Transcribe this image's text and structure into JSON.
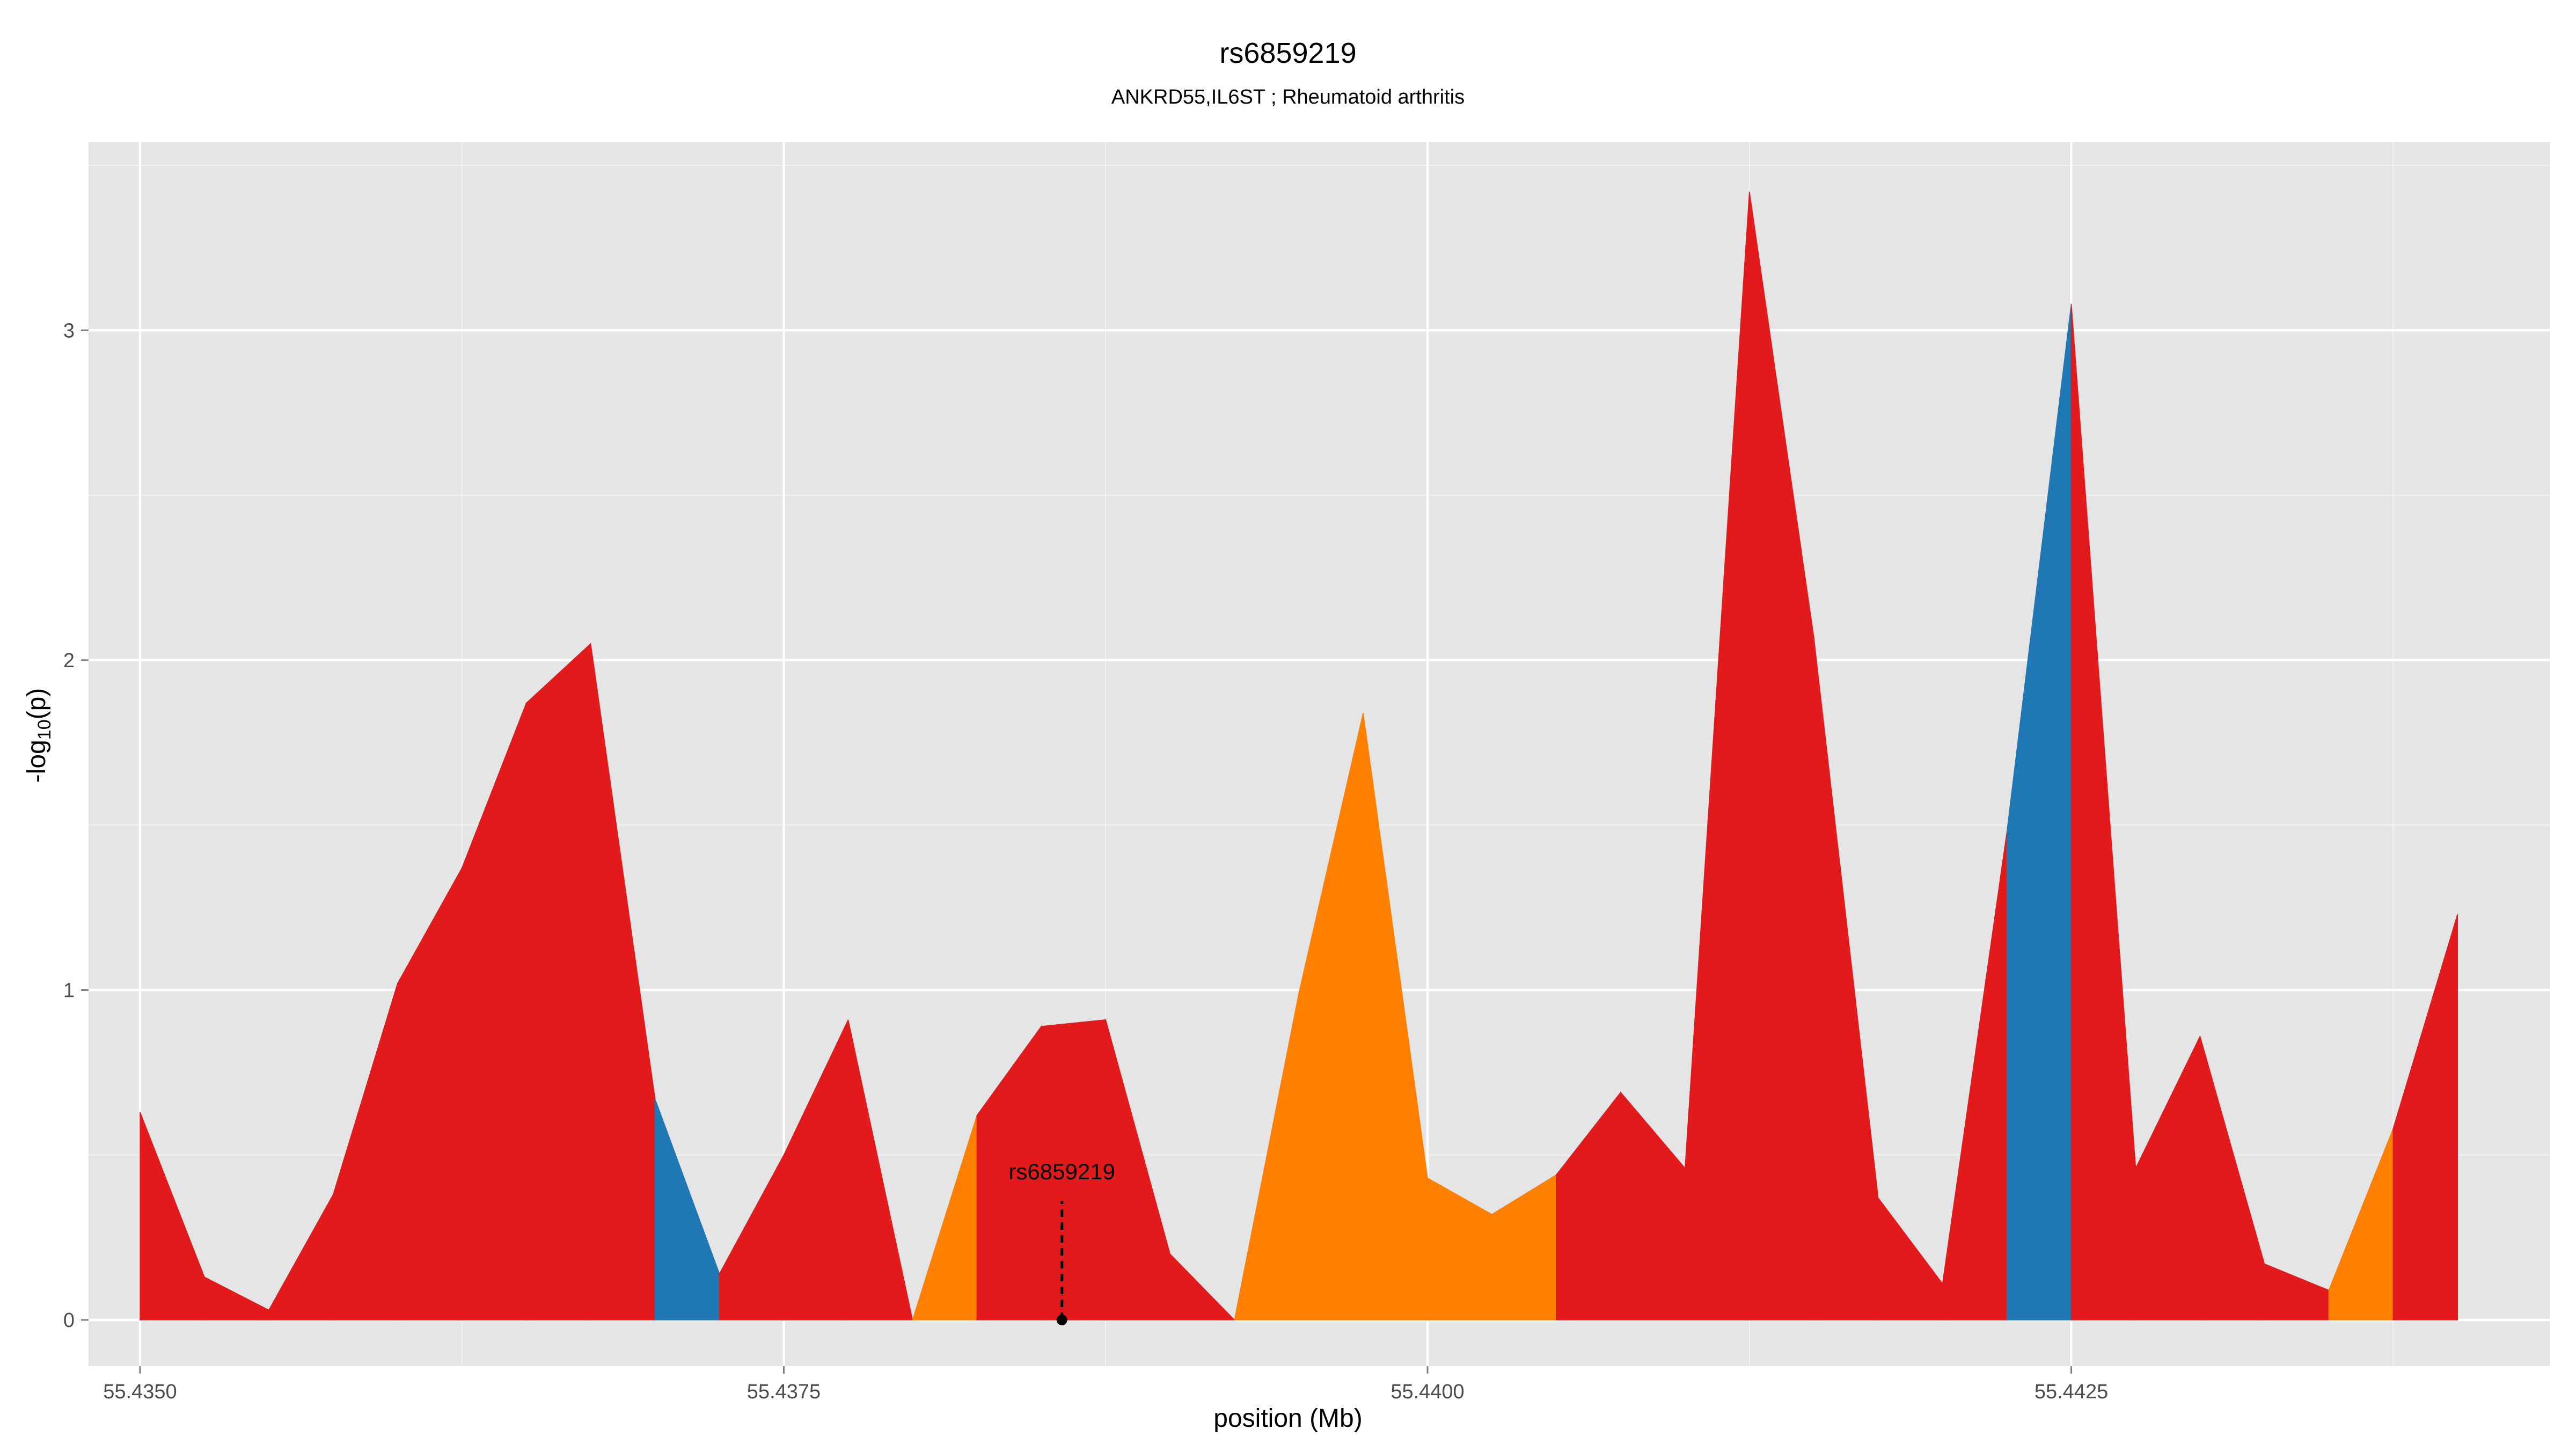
{
  "chart_data": {
    "type": "area",
    "title": "rs6859219",
    "subtitle": "ANKRD55,IL6ST ; Rheumatoid arthritis",
    "xlabel": "position (Mb)",
    "ylabel_main": "-log",
    "ylabel_sub": "10",
    "ylabel_end": "(p)",
    "xlim": [
      55.4348,
      55.44436
    ],
    "ylim": [
      -0.14,
      3.57
    ],
    "x_ticks": [
      55.435,
      55.4375,
      55.44,
      55.4425
    ],
    "x_tick_labels": [
      "55.4350",
      "55.4375",
      "55.4400",
      "55.4425"
    ],
    "y_ticks": [
      0,
      1,
      2,
      3
    ],
    "y_tick_labels": [
      "0",
      "1",
      "2",
      "3"
    ],
    "grid": true,
    "colors": {
      "red": "#e31a1c",
      "blue": "#1f78b4",
      "orange": "#ff7f00",
      "panel": "#e5e5e5",
      "grid": "#ffffff"
    },
    "points": [
      {
        "x": 55.435,
        "y": 0.63
      },
      {
        "x": 55.43525,
        "y": 0.13
      },
      {
        "x": 55.4355,
        "y": 0.03
      },
      {
        "x": 55.43575,
        "y": 0.38
      },
      {
        "x": 55.436,
        "y": 1.02
      },
      {
        "x": 55.43625,
        "y": 1.37
      },
      {
        "x": 55.4365,
        "y": 1.87
      },
      {
        "x": 55.43675,
        "y": 2.05
      },
      {
        "x": 55.437,
        "y": 0.67
      },
      {
        "x": 55.43725,
        "y": 0.14
      },
      {
        "x": 55.4375,
        "y": 0.5
      },
      {
        "x": 55.43775,
        "y": 0.91
      },
      {
        "x": 55.438,
        "y": 0.0
      },
      {
        "x": 55.43825,
        "y": 0.62
      },
      {
        "x": 55.4385,
        "y": 0.89
      },
      {
        "x": 55.43875,
        "y": 0.91
      },
      {
        "x": 55.439,
        "y": 0.2
      },
      {
        "x": 55.43925,
        "y": 0.0
      },
      {
        "x": 55.4395,
        "y": 0.99
      },
      {
        "x": 55.43975,
        "y": 1.84
      },
      {
        "x": 55.44,
        "y": 0.43
      },
      {
        "x": 55.44025,
        "y": 0.32
      },
      {
        "x": 55.4405,
        "y": 0.44
      },
      {
        "x": 55.44075,
        "y": 0.69
      },
      {
        "x": 55.441,
        "y": 0.46
      },
      {
        "x": 55.44125,
        "y": 3.42
      },
      {
        "x": 55.4415,
        "y": 2.07
      },
      {
        "x": 55.44175,
        "y": 0.37
      },
      {
        "x": 55.442,
        "y": 0.11
      },
      {
        "x": 55.44225,
        "y": 1.48
      },
      {
        "x": 55.4425,
        "y": 3.08
      },
      {
        "x": 55.44275,
        "y": 0.46
      },
      {
        "x": 55.443,
        "y": 0.86
      },
      {
        "x": 55.44325,
        "y": 0.17
      },
      {
        "x": 55.4435,
        "y": 0.09
      },
      {
        "x": 55.44375,
        "y": 0.58
      },
      {
        "x": 55.444,
        "y": 1.23
      }
    ],
    "segment_colors": [
      "red",
      "red",
      "red",
      "red",
      "red",
      "red",
      "red",
      "red",
      "blue",
      "red",
      "red",
      "red",
      "orange",
      "red",
      "red",
      "red",
      "red",
      "orange",
      "orange",
      "orange",
      "orange",
      "orange",
      "red",
      "red",
      "red",
      "red",
      "red",
      "red",
      "red",
      "blue",
      "red",
      "red",
      "red",
      "red",
      "orange",
      "red"
    ],
    "annotation": {
      "label": "rs6859219",
      "x": 55.43858,
      "y": 0,
      "label_y": 0.41
    }
  }
}
